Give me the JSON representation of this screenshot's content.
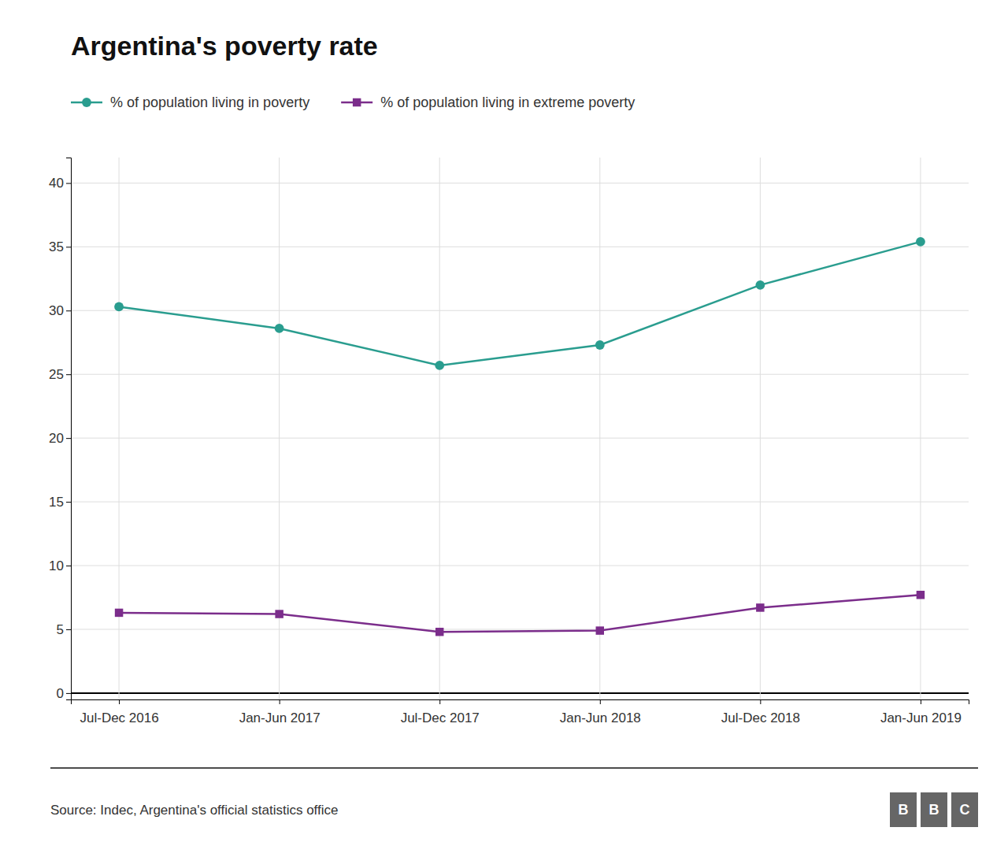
{
  "chart_data": {
    "type": "line",
    "title": "Argentina's poverty rate",
    "categories": [
      "Jul-Dec 2016",
      "Jan-Jun 2017",
      "Jul-Dec 2017",
      "Jan-Jun 2018",
      "Jul-Dec 2018",
      "Jan-Jun 2019"
    ],
    "series": [
      {
        "name": "% of population living in poverty",
        "color": "#2a9d8f",
        "marker": "circle",
        "values": [
          30.3,
          28.6,
          25.7,
          27.3,
          32.0,
          35.4
        ]
      },
      {
        "name": "% of population living in extreme poverty",
        "color": "#7b2d8b",
        "marker": "square",
        "values": [
          6.3,
          6.2,
          4.8,
          4.9,
          6.7,
          7.7
        ]
      }
    ],
    "ylim": [
      -0.5,
      42
    ],
    "yticks": [
      0,
      5,
      10,
      15,
      20,
      25,
      30,
      35,
      40
    ],
    "grid": true,
    "legend": "top",
    "source": "Source: Indec, Argentina's official statistics office",
    "logo": [
      "B",
      "B",
      "C"
    ]
  }
}
